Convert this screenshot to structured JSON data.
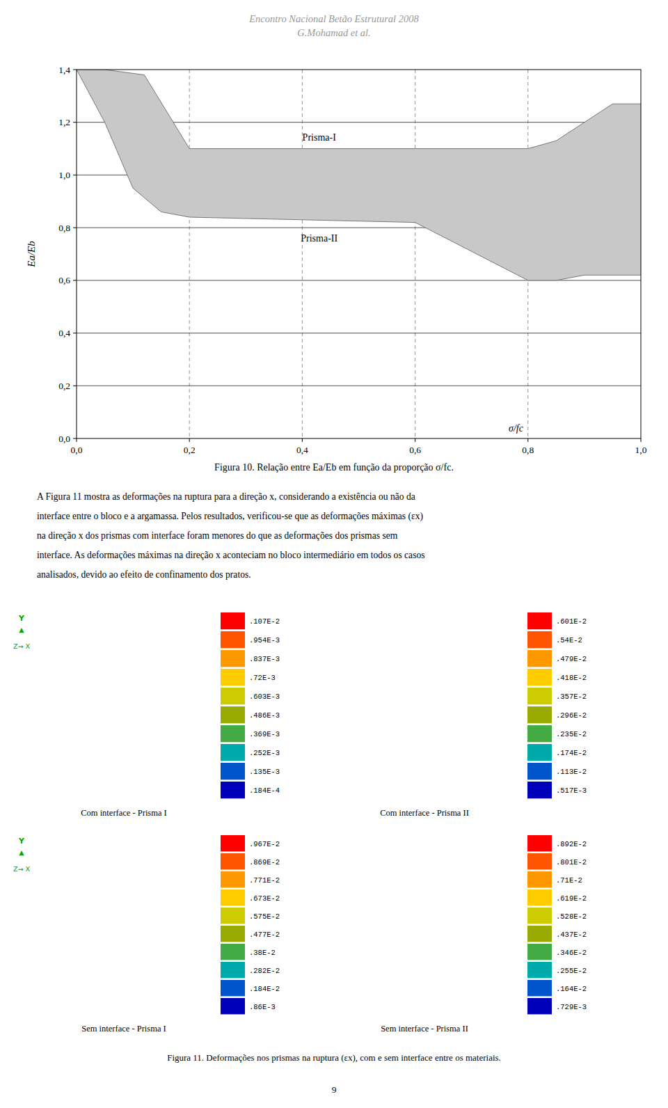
{
  "chart_data": {
    "type": "band",
    "color": "#c8c8c8",
    "series": [
      {
        "x": [
          0.0,
          0.05,
          0.12,
          0.2,
          0.4,
          0.6,
          0.8,
          0.85,
          0.9,
          0.95,
          1.0
        ],
        "values": [
          1.4,
          1.4,
          1.38,
          1.1,
          1.1,
          1.1,
          1.1,
          1.13,
          1.2,
          1.27,
          1.27
        ]
      },
      {
        "x": [
          0.0,
          0.05,
          0.1,
          0.15,
          0.2,
          0.4,
          0.6,
          0.8,
          0.85,
          0.9,
          0.95,
          1.0
        ],
        "values": [
          1.4,
          1.2,
          0.95,
          0.86,
          0.84,
          0.83,
          0.82,
          0.6,
          0.6,
          0.62,
          0.62,
          0.62
        ]
      }
    ],
    "xlim": [
      0.0,
      1.0
    ],
    "ylim": [
      0.0,
      1.4
    ],
    "xticks": [
      {
        "value": 0.0,
        "label": "0,0"
      },
      {
        "value": 0.2,
        "label": "0,2"
      },
      {
        "value": 0.4,
        "label": "0,4"
      },
      {
        "value": 0.6,
        "label": "0,6"
      },
      {
        "value": 0.8,
        "label": "0,8"
      },
      {
        "value": 1.0,
        "label": "1,0"
      }
    ],
    "yticks": [
      {
        "value": 0.0,
        "label": "0,0"
      },
      {
        "value": 0.2,
        "label": "0,2"
      },
      {
        "value": 0.4,
        "label": "0,4"
      },
      {
        "value": 0.6,
        "label": "0,6"
      },
      {
        "value": 0.8,
        "label": "0,8"
      },
      {
        "value": 1.0,
        "label": "1,0"
      },
      {
        "value": 1.2,
        "label": "1,2"
      },
      {
        "value": 1.4,
        "label": "1,4"
      }
    ],
    "x_label": "σ/fc",
    "y_label": "Ea/Eb",
    "annotations": [
      {
        "text": "Prisma-I",
        "x": 0.43,
        "y": 1.145
      },
      {
        "text": "Prisma-II",
        "x": 0.43,
        "y": 0.76
      }
    ],
    "grid": true
  },
  "page": {
    "header": [
      "Encontro Nacional Betão Estrutural 2008",
      "G.Mohamad et al."
    ],
    "caption": "Figura 10. Relação entre Ea/Eb  em função da proporção σ/fc.",
    "paragraph": [
      "A Figura 11 mostra as deformações na ruptura para a direção x, considerando a existência ou não da",
      "interface entre o bloco e a argamassa. Pelos resultados, verificou-se que as deformações máximas (εx)",
      "na direção x dos prismas com interface foram menores do que as deformações dos prismas sem",
      "interface. As deformações máximas na direção x aconteciam no bloco intermediário em todos os casos",
      "analisados, devido ao efeito de confinamento dos pratos."
    ],
    "figure": {
      "panels": [
        {
          "label": "Com interface - Prisma I",
          "legend_values": [
            ".107E-2",
            ".954E-3",
            ".837E-3",
            ".72E-3",
            ".603E-3",
            ".486E-3",
            ".369E-3",
            ".252E-3",
            ".135E-3",
            ".184E-4"
          ]
        },
        {
          "label": "Com interface - Prisma II",
          "legend_values": [
            ".601E-2",
            ".54E-2",
            ".479E-2",
            ".418E-2",
            ".357E-2",
            ".296E-2",
            ".235E-2",
            ".174E-2",
            ".113E-2",
            ".517E-3"
          ]
        },
        {
          "label": "Sem interface - Prisma I",
          "legend_values": [
            ".967E-2",
            ".869E-2",
            ".771E-2",
            ".673E-2",
            ".575E-2",
            ".477E-2",
            ".38E-2",
            ".282E-2",
            ".184E-2",
            ".86E-3"
          ]
        },
        {
          "label": "Sem interface - Prisma II",
          "legend_values": [
            ".892E-2",
            ".801E-2",
            ".71E-2",
            ".619E-2",
            ".528E-2",
            ".437E-2",
            ".346E-2",
            ".255E-2",
            ".164E-2",
            ".729E-3"
          ]
        }
      ],
      "legend_colors": [
        "#FF0000",
        "#FF5500",
        "#FF9900",
        "#FFCC00",
        "#CCCC00",
        "#99AA00",
        "#44AA44",
        "#00AAAA",
        "#0055CC",
        "#0000BB"
      ],
      "axis_indicator": [
        "Y",
        "▲",
        "Z→ X"
      ],
      "caption": "Figura 11. Deformações nos prismas na ruptura (εx), com e sem interface entre os materiais."
    },
    "page_number": "9"
  }
}
